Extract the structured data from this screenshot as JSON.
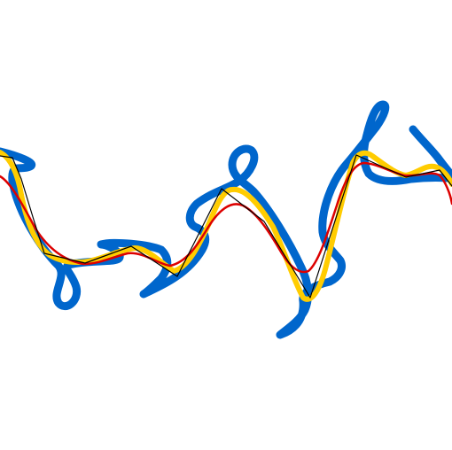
{
  "chart_data": {
    "type": "line",
    "title": "",
    "xlabel": "",
    "ylabel": "",
    "grid": false,
    "legend": "none",
    "series": [
      {
        "name": "",
        "role": "loopy-overshoot-spline",
        "color": "#0066cc"
      },
      {
        "name": "",
        "role": "smooth-interpolating-spline",
        "color": "#ffcc00"
      },
      {
        "name": "",
        "role": "smoothed-approximating-spline",
        "color": "#dd0000"
      },
      {
        "name": "",
        "role": "polyline-through-control-points",
        "color": "#000000"
      }
    ]
  }
}
